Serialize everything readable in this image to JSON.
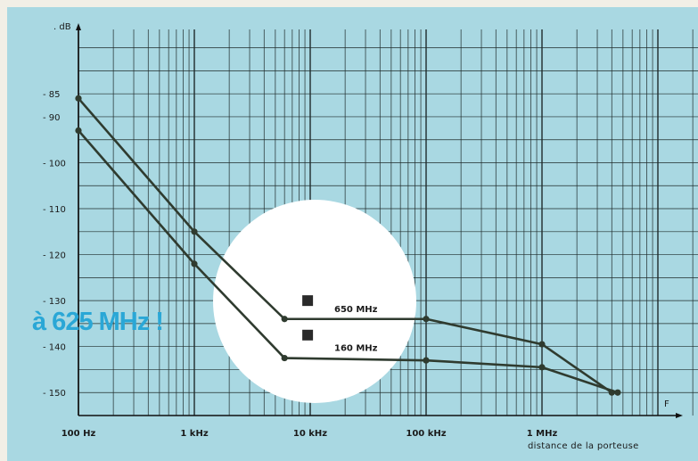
{
  "colors": {
    "background": "#a9d8e2",
    "grid": "#1f2b2b",
    "series_line": "#2f3b2f",
    "highlight_circle": "#ffffff",
    "promo_text": "#2aa7d6",
    "marker": "#2a2a2a"
  },
  "chart_data": {
    "type": "line",
    "title": "",
    "xlabel": "F",
    "x_caption": "distance de la porteuse",
    "ylabel": "dB",
    "x_scale": "log",
    "xlim": [
      100,
      8000000
    ],
    "ylim": [
      -155,
      -71
    ],
    "grid": true,
    "y_ticks": [
      {
        "value": -85,
        "label": "- 85"
      },
      {
        "value": -90,
        "label": "- 90"
      },
      {
        "value": -100,
        "label": "- 100"
      },
      {
        "value": -110,
        "label": "- 110"
      },
      {
        "value": -120,
        "label": "- 120"
      },
      {
        "value": -130,
        "label": "- 130"
      },
      {
        "value": -140,
        "label": "- 140"
      },
      {
        "value": -150,
        "label": "- 150"
      }
    ],
    "y_axis_label": ". dB",
    "x_ticks": [
      {
        "value": 100,
        "label": "100 Hz"
      },
      {
        "value": 1000,
        "label": "1 kHz"
      },
      {
        "value": 10000,
        "label": "10 kHz"
      },
      {
        "value": 100000,
        "label": "100 kHz"
      },
      {
        "value": 1000000,
        "label": "1 MHz"
      }
    ],
    "series": [
      {
        "name": "650 MHz",
        "points": [
          [
            100,
            -86
          ],
          [
            1000,
            -115
          ],
          [
            6000,
            -134
          ],
          [
            100000,
            -134
          ],
          [
            1000000,
            -139.5
          ],
          [
            4000000,
            -150
          ]
        ]
      },
      {
        "name": "160 MHz",
        "points": [
          [
            100,
            -93
          ],
          [
            1000,
            -122
          ],
          [
            6000,
            -142.5
          ],
          [
            100000,
            -143
          ],
          [
            1000000,
            -144.5
          ],
          [
            4500000,
            -150
          ]
        ]
      }
    ],
    "markers": [
      {
        "x": 9500,
        "y": -130
      },
      {
        "x": 9500,
        "y": -137.5
      }
    ],
    "annotation": "à 625 MHz !"
  }
}
